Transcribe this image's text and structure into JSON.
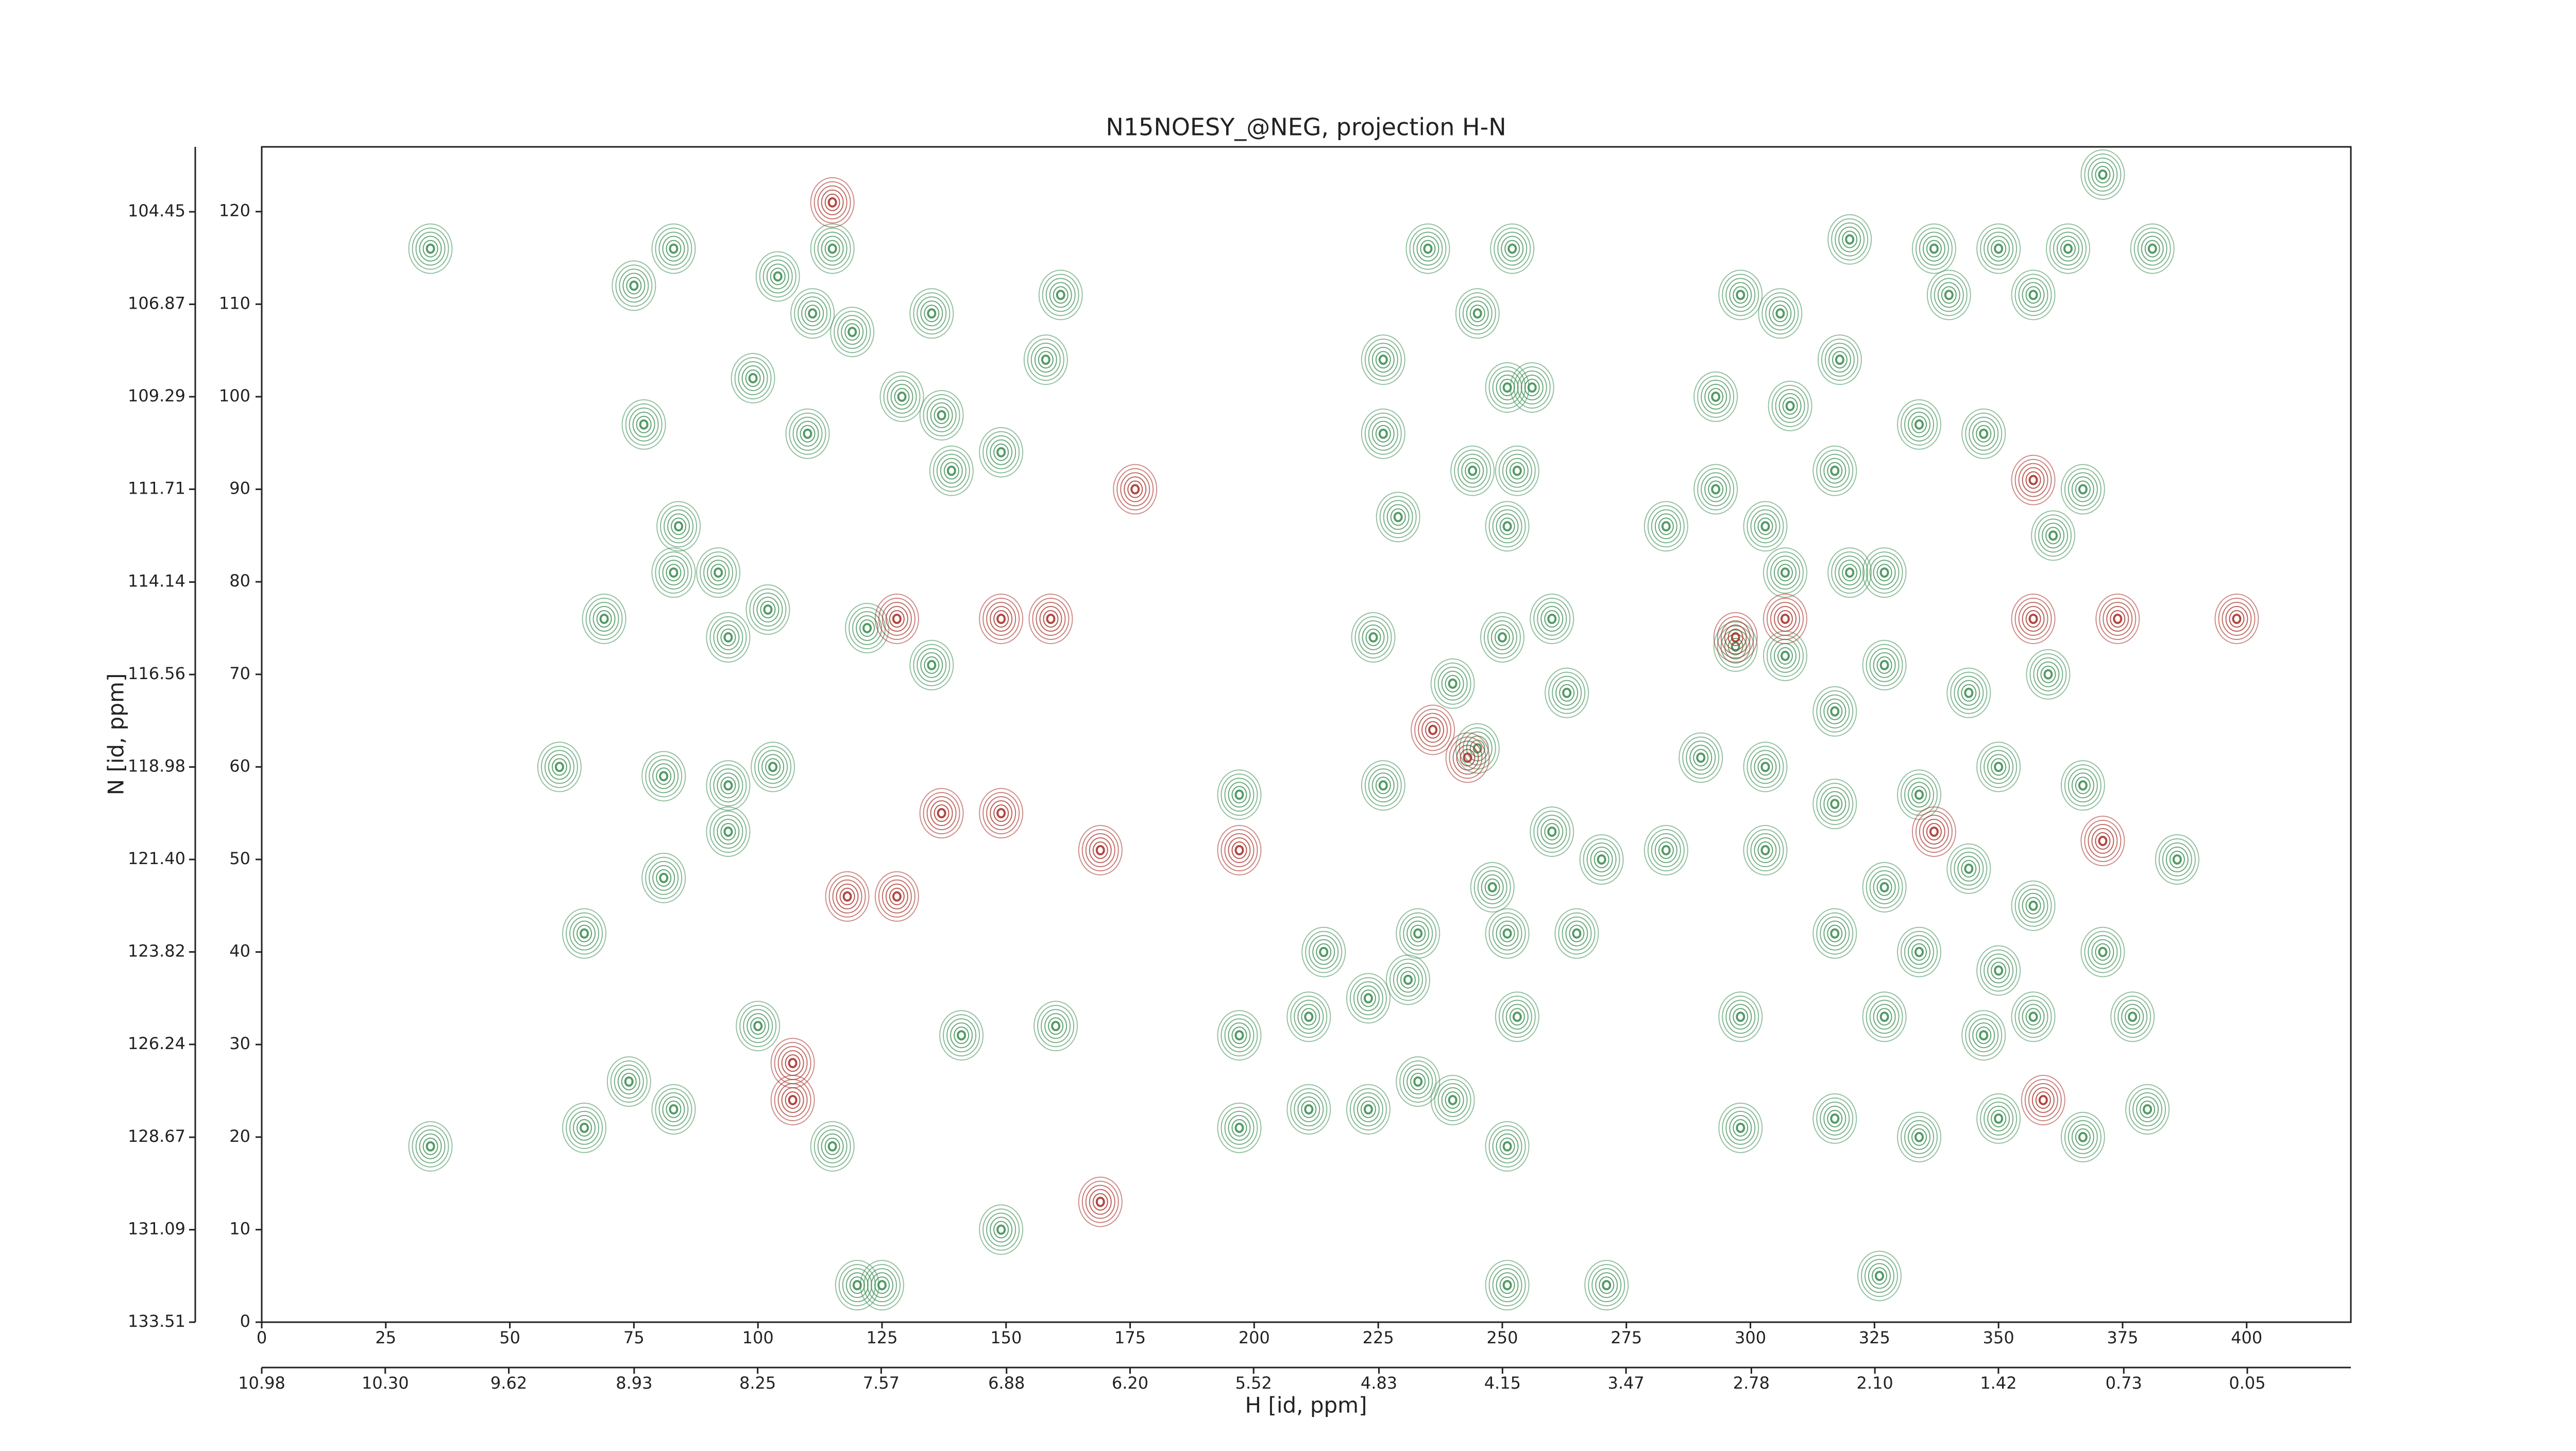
{
  "chart_data": {
    "type": "contour",
    "title": "N15NOESY_@NEG, projection H-N",
    "xlabel": "H [id, ppm]",
    "ylabel": "N [id, ppm]",
    "xlim": [
      0,
      421
    ],
    "ylim": [
      0,
      127
    ],
    "xticks": [
      0,
      25,
      50,
      75,
      100,
      125,
      150,
      175,
      200,
      225,
      250,
      275,
      300,
      325,
      350,
      375,
      400
    ],
    "yticks": [
      0,
      10,
      20,
      30,
      40,
      50,
      60,
      70,
      80,
      90,
      100,
      110,
      120
    ],
    "x2lim": [
      10.98,
      -0.52
    ],
    "x2ticks": [
      10.98,
      {
        "value": 10.3,
        "label": "10.30"
      },
      9.62,
      8.93,
      8.25,
      7.57,
      6.88,
      {
        "value": 6.2,
        "label": "6.20"
      },
      5.52,
      4.83,
      4.15,
      3.47,
      2.78,
      {
        "value": 2.1,
        "label": "2.10"
      },
      1.42,
      0.73,
      0.05
    ],
    "y2lim": [
      133.51,
      102.75
    ],
    "y2ticks": [
      133.51,
      131.09,
      128.67,
      126.24,
      123.82,
      {
        "value": 121.4,
        "label": "121.40"
      },
      118.98,
      116.56,
      114.14,
      111.71,
      109.29,
      106.87,
      104.45
    ],
    "series": [
      {
        "color": "#3f8f55",
        "x": [
          34,
          34,
          69,
          65,
          65,
          74,
          83,
          84,
          83,
          77,
          75,
          83,
          92,
          94,
          102,
          99,
          104,
          111,
          115,
          110,
          119,
          129,
          137,
          135,
          139,
          149,
          158,
          161,
          135,
          122,
          103,
          81,
          94,
          60,
          81,
          94,
          100,
          115,
          120,
          125,
          160,
          141,
          149,
          197,
          197,
          197,
          235,
          252,
          245,
          226,
          226,
          251,
          256,
          229,
          244,
          253,
          251,
          224,
          240,
          250,
          260,
          263,
          245,
          226,
          248,
          260,
          270,
          233,
          214,
          223,
          211,
          231,
          251,
          265,
          253,
          233,
          223,
          211,
          240,
          251,
          251,
          271,
          283,
          293,
          303,
          293,
          308,
          318,
          298,
          306,
          320,
          337,
          340,
          350,
          364,
          381,
          357,
          334,
          347,
          367,
          361,
          317,
          307,
          320,
          327,
          297,
          307,
          290,
          303,
          317,
          327,
          344,
          360,
          317,
          334,
          350,
          367,
          303,
          327,
          344,
          357,
          317,
          334,
          350,
          371,
          377,
          327,
          347,
          357,
          298,
          317,
          334,
          350,
          367,
          380,
          298,
          326,
          386,
          371,
          283
        ],
        "y": [
          116,
          19,
          76,
          42,
          21,
          26,
          23,
          86,
          81,
          97,
          112,
          116,
          81,
          74,
          77,
          102,
          113,
          109,
          116,
          96,
          107,
          100,
          98,
          109,
          92,
          94,
          104,
          111,
          71,
          75,
          60,
          59,
          58,
          60,
          48,
          53,
          32,
          19,
          4,
          4,
          32,
          31,
          10,
          31,
          57,
          21,
          116,
          116,
          109,
          104,
          96,
          101,
          101,
          87,
          92,
          92,
          86,
          74,
          69,
          74,
          76,
          68,
          62,
          58,
          47,
          53,
          50,
          42,
          40,
          35,
          33,
          37,
          42,
          42,
          33,
          26,
          23,
          23,
          24,
          19,
          4,
          4,
          86,
          90,
          86,
          100,
          99,
          104,
          111,
          109,
          117,
          116,
          111,
          116,
          116,
          116,
          111,
          97,
          96,
          90,
          85,
          92,
          81,
          81,
          81,
          73,
          72,
          61,
          60,
          66,
          71,
          68,
          70,
          56,
          57,
          60,
          58,
          51,
          47,
          49,
          45,
          42,
          40,
          38,
          40,
          33,
          33,
          31,
          33,
          21,
          22,
          20,
          22,
          20,
          23,
          33,
          5,
          50,
          124,
          51
        ]
      },
      {
        "color": "#a8332b",
        "x": [
          128,
          149,
          159,
          118,
          128,
          137,
          149,
          169,
          107,
          115,
          107,
          236,
          243,
          197,
          297,
          307,
          357,
          374,
          398,
          371,
          337,
          357,
          359,
          169,
          176
        ],
        "y": [
          76,
          76,
          76,
          46,
          46,
          55,
          55,
          51,
          24,
          121,
          28,
          64,
          61,
          51,
          74,
          76,
          76,
          76,
          76,
          52,
          53,
          91,
          24,
          13,
          90
        ]
      }
    ]
  }
}
